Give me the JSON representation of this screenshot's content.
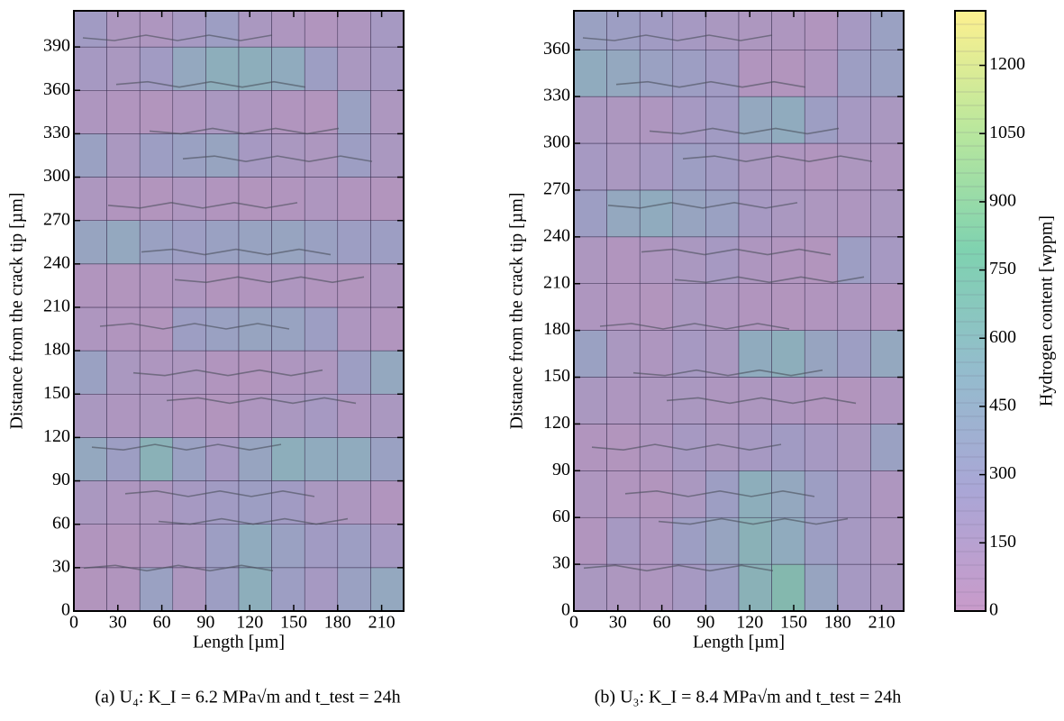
{
  "chart_data": [
    {
      "type": "heatmap",
      "xlabel": "Length [µm]",
      "ylabel": "Distance from the crack tip [µm]",
      "caption": "(a) U₄: K_I = 6.2 MPa√m and t_test = 24h",
      "xlim": [
        0,
        225
      ],
      "ylim": [
        0,
        415
      ],
      "xticks": [
        0,
        30,
        60,
        90,
        120,
        150,
        180,
        210
      ],
      "yticks": [
        0,
        30,
        60,
        90,
        120,
        150,
        180,
        210,
        240,
        270,
        300,
        330,
        360,
        390
      ],
      "xbins": [
        0,
        22.5,
        45,
        67.5,
        90,
        112.5,
        135,
        157.5,
        180,
        202.5,
        225
      ],
      "ybins": [
        0,
        30,
        60,
        90,
        120,
        150,
        180,
        210,
        240,
        270,
        300,
        330,
        360,
        390,
        415
      ],
      "z": [
        [
          60,
          80,
          350,
          120,
          300,
          550,
          300,
          200,
          350,
          450
        ],
        [
          80,
          60,
          100,
          150,
          300,
          500,
          350,
          250,
          300,
          200
        ],
        [
          150,
          100,
          120,
          200,
          250,
          300,
          250,
          150,
          120,
          80
        ],
        [
          450,
          300,
          600,
          350,
          200,
          400,
          550,
          500,
          500,
          350
        ],
        [
          150,
          100,
          120,
          80,
          60,
          100,
          150,
          200,
          100,
          150
        ],
        [
          350,
          150,
          100,
          120,
          80,
          60,
          100,
          120,
          300,
          450
        ],
        [
          100,
          80,
          60,
          300,
          350,
          400,
          380,
          300,
          100,
          80
        ],
        [
          80,
          60,
          80,
          100,
          60,
          80,
          100,
          80,
          60,
          100
        ],
        [
          400,
          450,
          350,
          300,
          350,
          380,
          400,
          350,
          300,
          300
        ],
        [
          120,
          80,
          60,
          100,
          80,
          60,
          80,
          100,
          80,
          60
        ],
        [
          350,
          150,
          300,
          350,
          400,
          200,
          150,
          120,
          300,
          150
        ],
        [
          100,
          80,
          60,
          100,
          150,
          100,
          80,
          60,
          350,
          120
        ],
        [
          200,
          150,
          250,
          450,
          550,
          550,
          500,
          300,
          150,
          200
        ],
        [
          250,
          120,
          100,
          200,
          300,
          150,
          100,
          80,
          100,
          200
        ]
      ]
    },
    {
      "type": "heatmap",
      "xlabel": "Length [µm]",
      "ylabel": "Distance from the crack tip [µm]",
      "caption": "(b) U₃: K_I = 8.4 MPa√m and t_test = 24h",
      "xlim": [
        0,
        225
      ],
      "ylim": [
        0,
        385
      ],
      "xticks": [
        0,
        30,
        60,
        90,
        120,
        150,
        180,
        210
      ],
      "yticks": [
        0,
        30,
        60,
        90,
        120,
        150,
        180,
        210,
        240,
        270,
        300,
        330,
        360
      ],
      "xbins": [
        0,
        22.5,
        45,
        67.5,
        90,
        112.5,
        135,
        157.5,
        180,
        202.5,
        225
      ],
      "ybins": [
        0,
        30,
        60,
        90,
        120,
        150,
        180,
        210,
        240,
        270,
        300,
        330,
        360,
        385
      ],
      "z": [
        [
          150,
          120,
          100,
          200,
          300,
          600,
          700,
          400,
          200,
          150
        ],
        [
          80,
          200,
          100,
          300,
          400,
          600,
          500,
          300,
          200,
          120
        ],
        [
          100,
          80,
          60,
          150,
          300,
          550,
          450,
          300,
          200,
          100
        ],
        [
          80,
          60,
          100,
          200,
          150,
          200,
          250,
          200,
          150,
          350
        ],
        [
          150,
          100,
          120,
          150,
          100,
          120,
          100,
          80,
          60,
          100
        ],
        [
          350,
          150,
          100,
          200,
          150,
          500,
          550,
          400,
          300,
          450
        ],
        [
          100,
          80,
          60,
          150,
          100,
          80,
          60,
          80,
          100,
          80
        ],
        [
          120,
          80,
          100,
          150,
          200,
          100,
          80,
          60,
          300,
          200
        ],
        [
          300,
          450,
          500,
          400,
          350,
          200,
          150,
          120,
          100,
          150
        ],
        [
          200,
          150,
          200,
          300,
          250,
          150,
          100,
          80,
          120,
          100
        ],
        [
          150,
          120,
          100,
          200,
          250,
          450,
          500,
          300,
          200,
          150
        ],
        [
          500,
          450,
          350,
          300,
          250,
          80,
          60,
          100,
          300,
          350
        ],
        [
          350,
          300,
          250,
          200,
          150,
          120,
          100,
          80,
          200,
          350
        ]
      ],
      "colorbar": {
        "label": "Hydrogen content [wppm]",
        "lim": [
          0,
          1320
        ],
        "ticks": [
          0,
          150,
          300,
          450,
          600,
          750,
          900,
          1050,
          1200
        ],
        "colors": [
          "#c99bca",
          "#aaa6d6",
          "#94bccd",
          "#7fd2b0",
          "#b9e79d",
          "#fdf08f"
        ]
      }
    }
  ]
}
